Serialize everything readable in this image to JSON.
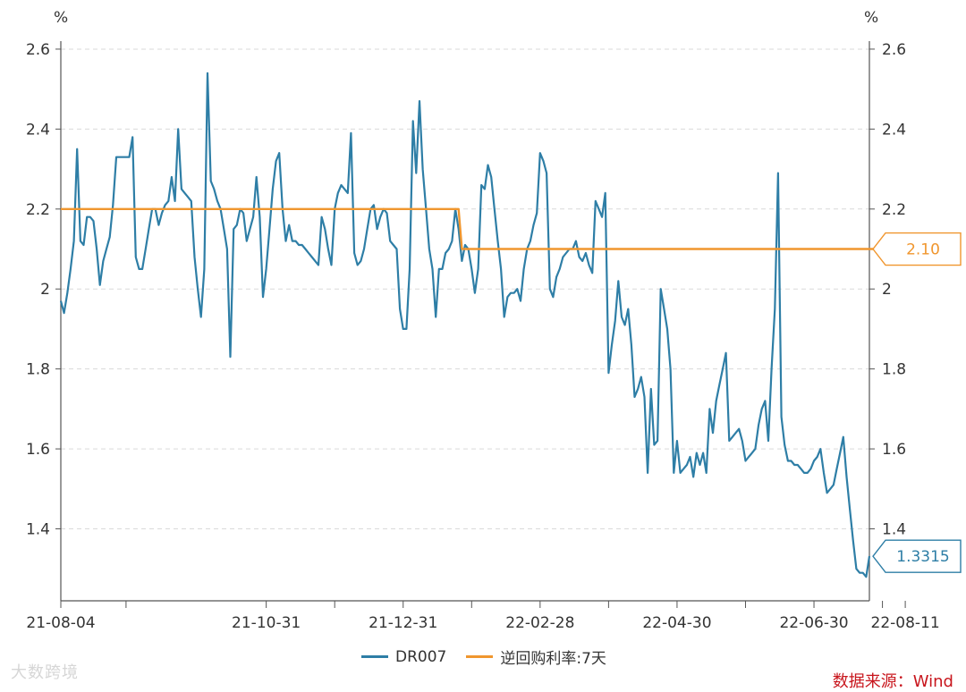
{
  "chart_data": {
    "type": "line",
    "left_axis_unit": "%",
    "right_axis_unit": "%",
    "ylim": [
      1.22,
      2.62
    ],
    "y_ticks": [
      "1.4",
      "1.6",
      "1.8",
      "2",
      "2.2",
      "2.4",
      "2.6"
    ],
    "y_tick_values": [
      1.4,
      1.6,
      1.8,
      2.0,
      2.2,
      2.4,
      2.6
    ],
    "x_tick_labels": [
      "21-08-04",
      "21-10-31",
      "21-12-31",
      "22-02-28",
      "22-04-30",
      "22-06-30",
      "22-08-11"
    ],
    "x_tick_index": [
      0,
      63,
      105,
      147,
      189,
      231,
      259
    ],
    "x_minor_tick_index": [
      20,
      84,
      126,
      168,
      210,
      252
    ],
    "grid": true,
    "legend_position": "bottom",
    "series": [
      {
        "name": "DR007",
        "color": "#2e7ea6",
        "end_label": "1.3315",
        "values": [
          1.97,
          1.94,
          1.99,
          2.05,
          2.12,
          2.35,
          2.12,
          2.11,
          2.18,
          2.18,
          2.17,
          2.1,
          2.01,
          2.07,
          2.1,
          2.13,
          2.21,
          2.33,
          2.33,
          2.33,
          2.33,
          2.33,
          2.38,
          2.08,
          2.05,
          2.05,
          2.1,
          2.15,
          2.2,
          2.2,
          2.16,
          2.19,
          2.21,
          2.22,
          2.28,
          2.22,
          2.4,
          2.25,
          2.24,
          2.23,
          2.22,
          2.08,
          2.0,
          1.93,
          2.05,
          2.54,
          2.27,
          2.25,
          2.22,
          2.2,
          2.15,
          2.1,
          1.83,
          2.15,
          2.16,
          2.2,
          2.19,
          2.12,
          2.15,
          2.18,
          2.28,
          2.18,
          1.98,
          2.05,
          2.15,
          2.25,
          2.32,
          2.34,
          2.2,
          2.12,
          2.16,
          2.12,
          2.12,
          2.11,
          2.11,
          2.1,
          2.09,
          2.08,
          2.07,
          2.06,
          2.18,
          2.15,
          2.1,
          2.06,
          2.2,
          2.24,
          2.26,
          2.25,
          2.24,
          2.39,
          2.09,
          2.06,
          2.07,
          2.1,
          2.15,
          2.2,
          2.21,
          2.15,
          2.18,
          2.2,
          2.19,
          2.12,
          2.11,
          2.1,
          1.95,
          1.9,
          1.9,
          2.05,
          2.42,
          2.29,
          2.47,
          2.3,
          2.2,
          2.1,
          2.05,
          1.93,
          2.05,
          2.05,
          2.09,
          2.1,
          2.12,
          2.2,
          2.15,
          2.07,
          2.11,
          2.1,
          2.05,
          1.99,
          2.05,
          2.26,
          2.25,
          2.31,
          2.28,
          2.2,
          2.12,
          2.05,
          1.93,
          1.98,
          1.99,
          1.99,
          2.0,
          1.97,
          2.05,
          2.1,
          2.12,
          2.16,
          2.19,
          2.34,
          2.32,
          2.29,
          2.0,
          1.98,
          2.03,
          2.05,
          2.08,
          2.09,
          2.1,
          2.1,
          2.12,
          2.08,
          2.07,
          2.09,
          2.06,
          2.04,
          2.22,
          2.2,
          2.18,
          2.24,
          1.79,
          1.86,
          1.92,
          2.02,
          1.93,
          1.91,
          1.95,
          1.86,
          1.73,
          1.75,
          1.78,
          1.73,
          1.54,
          1.75,
          1.61,
          1.62,
          2.0,
          1.95,
          1.9,
          1.8,
          1.54,
          1.62,
          1.54,
          1.55,
          1.56,
          1.58,
          1.53,
          1.59,
          1.56,
          1.59,
          1.54,
          1.7,
          1.64,
          1.72,
          1.76,
          1.8,
          1.84,
          1.62,
          1.63,
          1.64,
          1.65,
          1.62,
          1.57,
          1.58,
          1.59,
          1.6,
          1.66,
          1.7,
          1.72,
          1.62,
          1.8,
          1.95,
          2.29,
          1.68,
          1.61,
          1.57,
          1.57,
          1.56,
          1.56,
          1.55,
          1.54,
          1.54,
          1.55,
          1.57,
          1.58,
          1.6,
          1.54,
          1.49,
          1.5,
          1.51,
          1.55,
          1.59,
          1.63,
          1.53,
          1.45,
          1.37,
          1.3,
          1.29,
          1.29,
          1.28,
          1.3315
        ]
      },
      {
        "name": "逆回购利率:7天",
        "color": "#f0962e",
        "end_label": "2.10",
        "values": [
          2.2,
          2.2,
          2.2,
          2.2,
          2.2,
          2.2,
          2.2,
          2.2,
          2.2,
          2.2,
          2.2,
          2.2,
          2.2,
          2.2,
          2.2,
          2.2,
          2.2,
          2.2,
          2.2,
          2.2,
          2.2,
          2.2,
          2.2,
          2.2,
          2.2,
          2.2,
          2.2,
          2.2,
          2.2,
          2.2,
          2.2,
          2.2,
          2.2,
          2.2,
          2.2,
          2.2,
          2.2,
          2.2,
          2.2,
          2.2,
          2.2,
          2.2,
          2.2,
          2.2,
          2.2,
          2.2,
          2.2,
          2.2,
          2.2,
          2.2,
          2.2,
          2.2,
          2.2,
          2.2,
          2.2,
          2.2,
          2.2,
          2.2,
          2.2,
          2.2,
          2.2,
          2.2,
          2.2,
          2.2,
          2.2,
          2.2,
          2.2,
          2.2,
          2.2,
          2.2,
          2.2,
          2.2,
          2.2,
          2.2,
          2.2,
          2.2,
          2.2,
          2.2,
          2.2,
          2.2,
          2.2,
          2.2,
          2.2,
          2.2,
          2.2,
          2.2,
          2.2,
          2.2,
          2.2,
          2.2,
          2.2,
          2.2,
          2.2,
          2.2,
          2.2,
          2.2,
          2.2,
          2.2,
          2.2,
          2.2,
          2.2,
          2.2,
          2.2,
          2.2,
          2.2,
          2.2,
          2.2,
          2.2,
          2.2,
          2.2,
          2.2,
          2.2,
          2.2,
          2.2,
          2.2,
          2.2,
          2.2,
          2.2,
          2.2,
          2.2,
          2.2,
          2.2,
          2.2,
          2.1,
          2.1,
          2.1,
          2.1,
          2.1,
          2.1,
          2.1,
          2.1,
          2.1,
          2.1,
          2.1,
          2.1,
          2.1,
          2.1,
          2.1,
          2.1,
          2.1,
          2.1,
          2.1,
          2.1,
          2.1,
          2.1,
          2.1,
          2.1,
          2.1,
          2.1,
          2.1,
          2.1,
          2.1,
          2.1,
          2.1,
          2.1,
          2.1,
          2.1,
          2.1,
          2.1,
          2.1,
          2.1,
          2.1,
          2.1,
          2.1,
          2.1,
          2.1,
          2.1,
          2.1,
          2.1,
          2.1,
          2.1,
          2.1,
          2.1,
          2.1,
          2.1,
          2.1,
          2.1,
          2.1,
          2.1,
          2.1,
          2.1,
          2.1,
          2.1,
          2.1,
          2.1,
          2.1,
          2.1,
          2.1,
          2.1,
          2.1,
          2.1,
          2.1,
          2.1,
          2.1,
          2.1,
          2.1,
          2.1,
          2.1,
          2.1,
          2.1,
          2.1,
          2.1,
          2.1,
          2.1,
          2.1,
          2.1,
          2.1,
          2.1,
          2.1,
          2.1,
          2.1,
          2.1,
          2.1,
          2.1,
          2.1,
          2.1,
          2.1,
          2.1,
          2.1,
          2.1,
          2.1,
          2.1,
          2.1,
          2.1,
          2.1,
          2.1,
          2.1,
          2.1,
          2.1,
          2.1,
          2.1,
          2.1,
          2.1,
          2.1,
          2.1,
          2.1,
          2.1,
          2.1,
          2.1,
          2.1,
          2.1,
          2.1,
          2.1,
          2.1,
          2.1,
          2.1,
          2.1,
          2.1,
          2.1,
          2.1,
          2.1,
          2.1,
          2.1,
          2.1,
          2.1,
          2.1,
          2.1,
          2.1,
          2.1,
          2.1,
          2.1,
          2.1,
          2.1,
          2.1,
          2.1,
          2.1,
          2.1,
          2.1,
          2.1,
          2.1,
          2.1,
          2.1,
          2.1
        ]
      }
    ]
  },
  "legend": {
    "item1": "DR007",
    "item2": "逆回购利率:7天"
  },
  "source": "数据来源：Wind",
  "watermark": "大数跨境"
}
